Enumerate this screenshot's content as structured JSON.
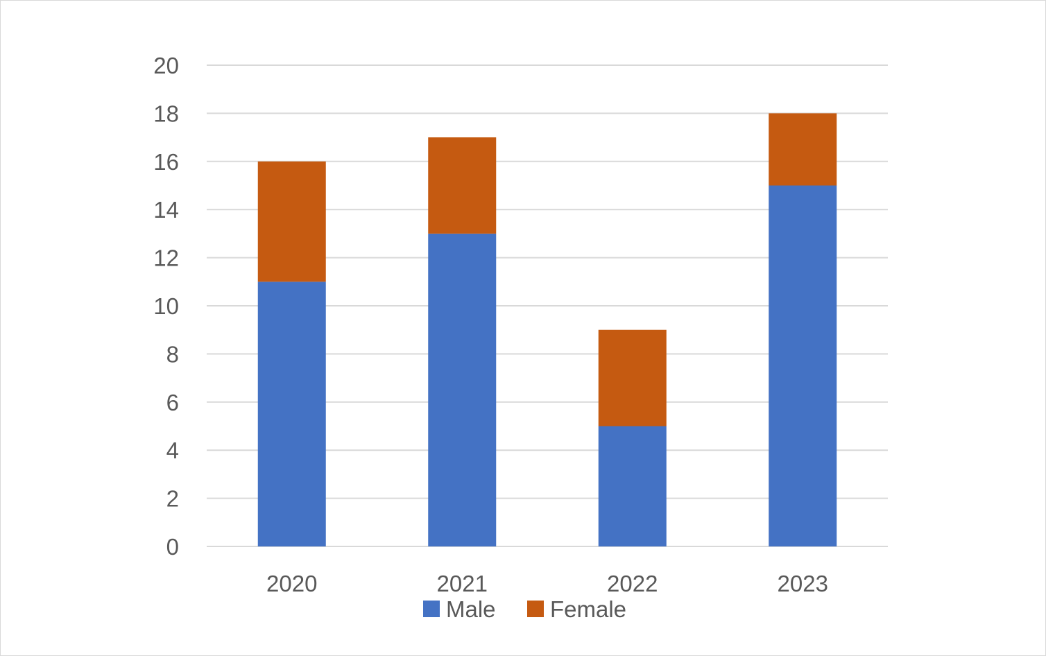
{
  "chart_data": {
    "type": "bar",
    "stacked": true,
    "categories": [
      "2020",
      "2021",
      "2022",
      "2023"
    ],
    "series": [
      {
        "name": "Male",
        "color": "#4472C4",
        "values": [
          11,
          13,
          5,
          15
        ]
      },
      {
        "name": "Female",
        "color": "#C55A11",
        "values": [
          5,
          4,
          4,
          3
        ]
      }
    ],
    "title": "",
    "xlabel": "",
    "ylabel": "",
    "ylim": [
      0,
      20
    ],
    "yticks": [
      "0",
      "2",
      "4",
      "6",
      "8",
      "10",
      "12",
      "14",
      "16",
      "18",
      "20"
    ],
    "grid": true,
    "legend_position": "bottom"
  }
}
